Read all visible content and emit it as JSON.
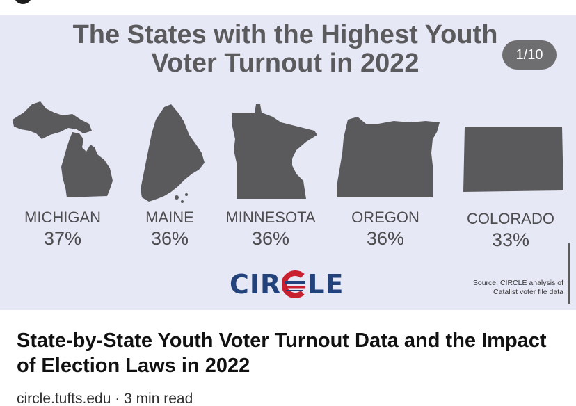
{
  "slideshow": {
    "title": "The States with the Highest Youth Voter Turnout in 2022",
    "counter": "1/10",
    "states": [
      {
        "name": "MICHIGAN",
        "percent": "37%"
      },
      {
        "name": "MAINE",
        "percent": "36%"
      },
      {
        "name": "MINNESOTA",
        "percent": "36%"
      },
      {
        "name": "OREGON",
        "percent": "36%"
      },
      {
        "name": "COLORADO",
        "percent": "33%"
      }
    ],
    "logo_text_left": "CIR",
    "logo_text_right": "LE",
    "source_line1": "Source: CIRCLE analysis of",
    "source_line2": "Catalist voter file data",
    "colors": {
      "background": "#e6e8f6",
      "map_fill": "#5a5a5c",
      "text": "#4d4d50",
      "logo_blue": "#23427c",
      "logo_red": "#c8202e"
    }
  },
  "article": {
    "headline": "State-by-State Youth Voter Turnout Data and the Impact of Election Laws in 2022",
    "meta": "circle.tufts.edu · 3 min read"
  }
}
